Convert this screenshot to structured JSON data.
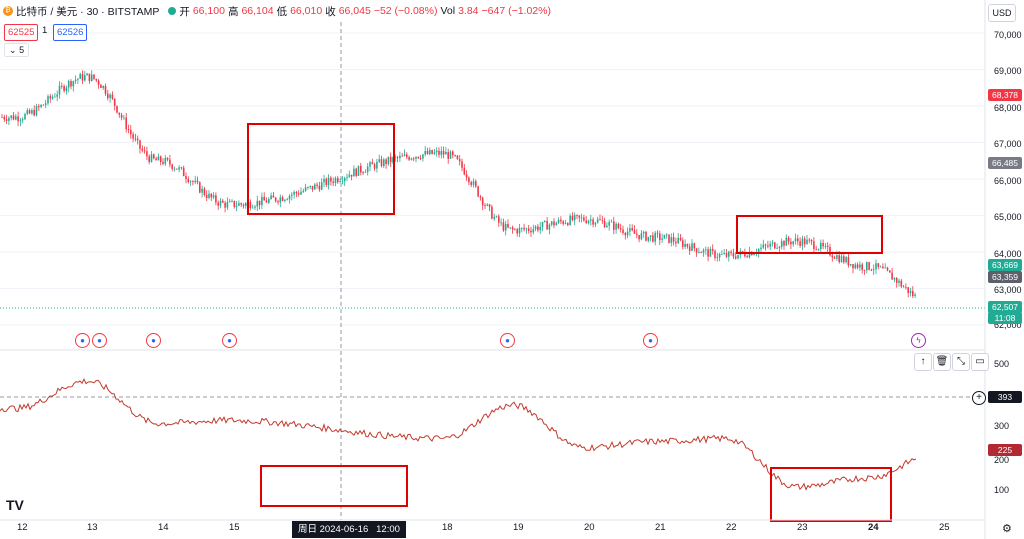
{
  "header": {
    "symbol": "比特币 / 美元 · 30 · BITSTAMP",
    "open_label": "开",
    "open": "66,100",
    "high_label": "高",
    "high": "66,104",
    "low_label": "低",
    "low": "66,010",
    "close_label": "收",
    "close": "66,045",
    "change": "−52 (−0.08%)",
    "vol_label": "Vol",
    "vol_price": "3.84",
    "vol_change": "−647 (−1.02%)"
  },
  "order": {
    "sell": "62525",
    "qty": "1",
    "buy": "62526"
  },
  "indicator_count": "5",
  "currency": "USD",
  "price_axis": [
    "70,000",
    "69,000",
    "68,000",
    "67,000",
    "66,000",
    "65,000",
    "64,000",
    "63,000",
    "62,000"
  ],
  "price_tags": {
    "high_tag": "68,378",
    "mid_tag": "66,485",
    "tag_a": "63,669",
    "tag_b": "63,359",
    "last": "62,507",
    "countdown": "11:08"
  },
  "osc_axis": [
    "500",
    "300",
    "200",
    "100"
  ],
  "osc_tags": {
    "crosshair": "393",
    "current": "225"
  },
  "x_axis": [
    "12",
    "13",
    "14",
    "15",
    "18",
    "19",
    "20",
    "21",
    "22",
    "23",
    "24",
    "25"
  ],
  "crosshair_date": "周日 2024-06-16   12:00",
  "tradingview_logo": "TV",
  "colors": {
    "up": "#22ab94",
    "down": "#f23645",
    "box": "#e00000",
    "osc": "#c2392b"
  },
  "chart_data": {
    "type": "candlestick",
    "x": [
      "06-12 00:00",
      "06-13 00:00",
      "06-14 00:00",
      "06-15 00:00",
      "06-18 00:00",
      "06-19 00:00",
      "06-20 00:00",
      "06-21 00:00",
      "06-22 00:00",
      "06-23 00:00",
      "06-24 00:00",
      "06-25 00:00"
    ],
    "close": [
      67700,
      68800,
      66500,
      65300,
      66700,
      64600,
      64900,
      64400,
      63900,
      64300,
      63600,
      62500
    ],
    "ylim": [
      62000,
      70000
    ],
    "oscillator": {
      "x": [
        "06-12 00:00",
        "06-13 00:00",
        "06-14 00:00",
        "06-15 00:00",
        "06-18 00:00",
        "06-19 00:00",
        "06-20 00:00",
        "06-21 00:00",
        "06-22 00:00",
        "06-23 00:00",
        "06-24 00:00",
        "06-25 00:00"
      ],
      "values": [
        370,
        460,
        320,
        330,
        270,
        380,
        240,
        260,
        270,
        110,
        140,
        225
      ],
      "ylim": [
        50,
        520
      ]
    }
  }
}
